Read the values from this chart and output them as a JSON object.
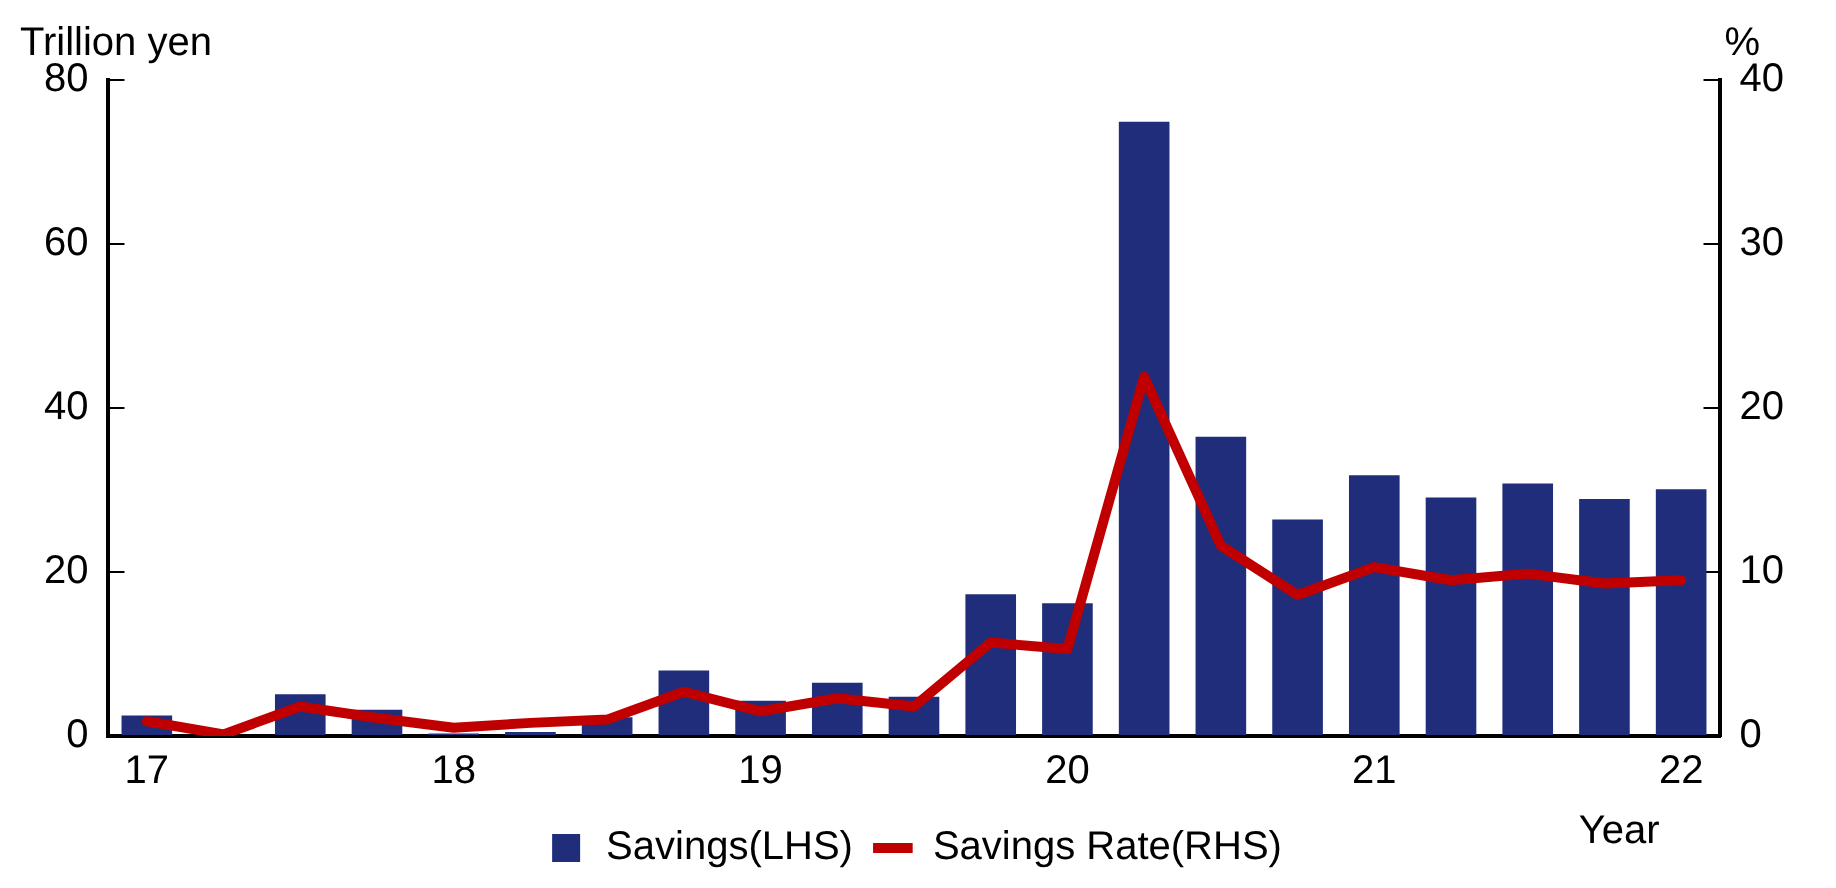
{
  "chart_data": {
    "type": "bar",
    "xlabel": "Year",
    "ylabel": "Trillion yen",
    "y2label": "%",
    "categories": [
      "17",
      null,
      null,
      null,
      "18",
      null,
      null,
      null,
      "19",
      null,
      null,
      null,
      "20",
      null,
      null,
      null,
      "21",
      null,
      null,
      null,
      "22"
    ],
    "series": [
      {
        "name": "Savings(LHS)",
        "color": "#1f2d7b",
        "values": [
          2.5,
          null,
          5.1,
          3.2,
          0.3,
          0.5,
          2.3,
          8.0,
          4.3,
          6.5,
          4.8,
          17.3,
          16.2,
          74.9,
          36.5,
          26.4,
          31.8,
          29.1,
          30.8,
          28.9,
          30.1
        ]
      },
      {
        "name": "Savings Rate(RHS)",
        "type": "line",
        "axis": "y2",
        "color": "#c00000",
        "marker": "none",
        "values": [
          0.9,
          0.1,
          1.8,
          1.1,
          0.5,
          0.8,
          1.0,
          2.7,
          1.5,
          2.3,
          1.8,
          5.7,
          5.3,
          21.9,
          11.6,
          8.6,
          10.3,
          9.5,
          9.9,
          9.3,
          9.5
        ]
      }
    ],
    "ylim": [
      0,
      80
    ],
    "yticks": [
      0,
      20,
      40,
      60,
      80
    ],
    "y2lim": [
      0,
      40
    ],
    "y2ticks": [
      0,
      10,
      20,
      30,
      40
    ],
    "grid": false,
    "legend": "bottom"
  }
}
